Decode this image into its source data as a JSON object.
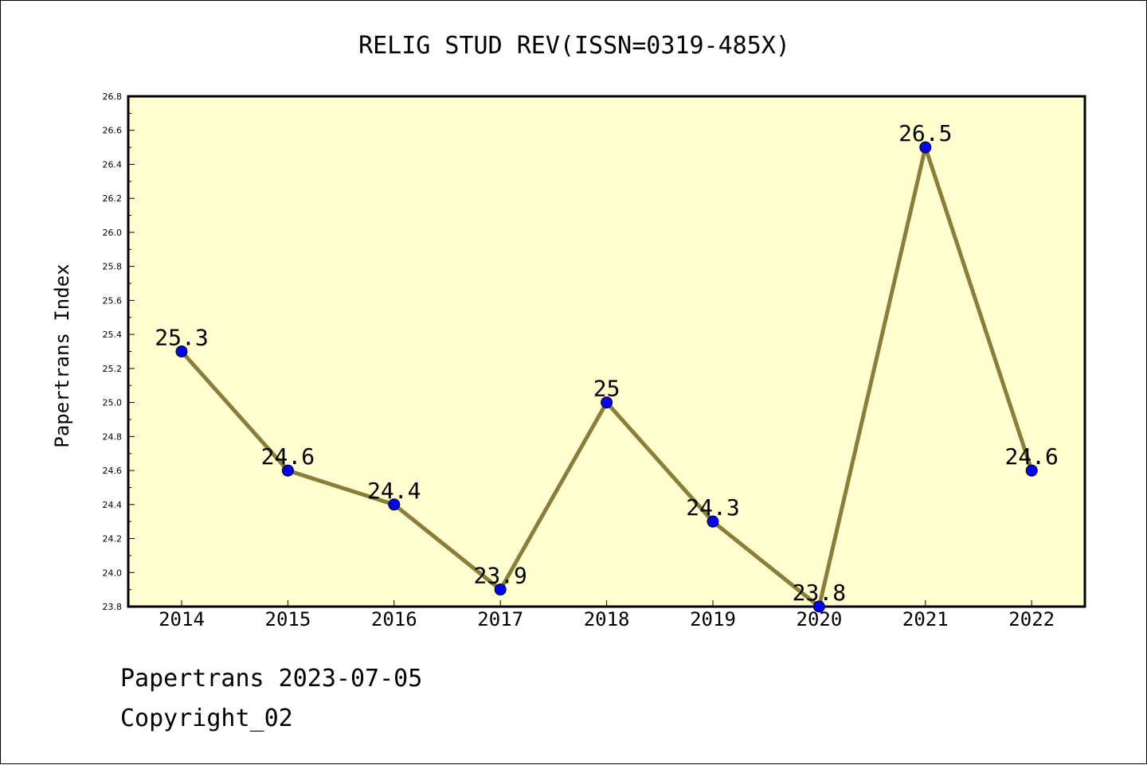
{
  "chart_data": {
    "type": "line",
    "title": "RELIG STUD REV(ISSN=0319-485X)",
    "xlabel": "",
    "ylabel": "Papertrans Index",
    "x": [
      "2014",
      "2015",
      "2016",
      "2017",
      "2018",
      "2019",
      "2020",
      "2021",
      "2022"
    ],
    "values": [
      25.3,
      24.6,
      24.4,
      23.9,
      25.0,
      24.3,
      23.8,
      26.5,
      24.6
    ],
    "data_labels": [
      "25.3",
      "24.6",
      "24.4",
      "23.9",
      "25",
      "24.3",
      "23.8",
      "26.5",
      "24.6"
    ],
    "ylim": [
      23.8,
      26.8
    ],
    "yticks": [
      "23.8",
      "24.0",
      "24.2",
      "24.4",
      "24.6",
      "24.8",
      "25.0",
      "25.2",
      "25.4",
      "25.6",
      "25.8",
      "26.0",
      "26.2",
      "26.4",
      "26.6",
      "26.8"
    ],
    "grid": false,
    "legend": "none",
    "colors": {
      "plot_background": "#ffffd0",
      "line": "#8b7d3a",
      "marker": "#0000ff",
      "axis": "#000000"
    }
  },
  "footer": {
    "line1": "Papertrans 2023-07-05",
    "line2": "Copyright_02"
  }
}
